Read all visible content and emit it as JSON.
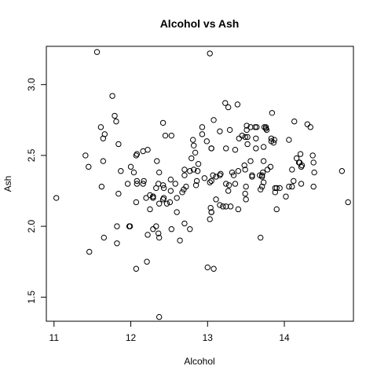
{
  "chart_data": {
    "type": "scatter",
    "title": "Alcohol vs Ash",
    "xlabel": "Alcohol",
    "ylabel": "Ash",
    "xlim": [
      10.9,
      14.9
    ],
    "ylim": [
      1.33,
      3.27
    ],
    "xticks": [
      11,
      12,
      13,
      14
    ],
    "yticks": [
      1.5,
      2.0,
      2.5,
      3.0
    ],
    "xtick_labels": [
      "11",
      "12",
      "13",
      "14"
    ],
    "ytick_labels": [
      "1.5",
      "2.0",
      "2.5",
      "3.0"
    ],
    "grid": false,
    "points": [
      [
        11.03,
        2.2
      ],
      [
        11.41,
        2.5
      ],
      [
        11.45,
        2.42
      ],
      [
        11.46,
        1.82
      ],
      [
        11.56,
        3.23
      ],
      [
        11.61,
        2.7
      ],
      [
        11.62,
        2.28
      ],
      [
        11.64,
        2.46
      ],
      [
        11.64,
        2.62
      ],
      [
        11.65,
        1.92
      ],
      [
        11.66,
        2.65
      ],
      [
        11.76,
        2.92
      ],
      [
        11.79,
        2.78
      ],
      [
        11.81,
        2.74
      ],
      [
        11.82,
        2.0
      ],
      [
        11.82,
        1.88
      ],
      [
        11.84,
        2.58
      ],
      [
        11.84,
        2.23
      ],
      [
        11.87,
        2.39
      ],
      [
        11.96,
        2.3
      ],
      [
        11.98,
        2.0
      ],
      [
        11.99,
        2.0
      ],
      [
        12.0,
        2.42
      ],
      [
        12.04,
        2.38
      ],
      [
        12.07,
        2.5
      ],
      [
        12.08,
        2.51
      ],
      [
        12.08,
        2.32
      ],
      [
        12.08,
        2.3
      ],
      [
        12.07,
        2.17
      ],
      [
        12.07,
        1.7
      ],
      [
        12.16,
        2.53
      ],
      [
        12.16,
        2.3
      ],
      [
        12.17,
        2.32
      ],
      [
        12.2,
        2.2
      ],
      [
        12.21,
        1.75
      ],
      [
        12.22,
        2.54
      ],
      [
        12.22,
        1.94
      ],
      [
        12.25,
        2.12
      ],
      [
        12.25,
        2.22
      ],
      [
        12.29,
        2.2
      ],
      [
        12.29,
        2.21
      ],
      [
        12.29,
        2.21
      ],
      [
        12.29,
        1.98
      ],
      [
        12.33,
        2.0
      ],
      [
        12.33,
        2.27
      ],
      [
        12.34,
        2.46
      ],
      [
        12.36,
        2.3
      ],
      [
        12.36,
        1.95
      ],
      [
        12.37,
        2.38
      ],
      [
        12.37,
        2.16
      ],
      [
        12.37,
        1.92
      ],
      [
        12.37,
        1.36
      ],
      [
        12.42,
        2.73
      ],
      [
        12.42,
        2.19
      ],
      [
        12.42,
        2.29
      ],
      [
        12.43,
        2.2
      ],
      [
        12.43,
        2.27
      ],
      [
        12.45,
        2.64
      ],
      [
        12.47,
        2.16
      ],
      [
        12.51,
        2.17
      ],
      [
        12.52,
        2.25
      ],
      [
        12.52,
        2.33
      ],
      [
        12.53,
        2.64
      ],
      [
        12.53,
        1.98
      ],
      [
        12.58,
        2.3
      ],
      [
        12.6,
        2.2
      ],
      [
        12.6,
        2.1
      ],
      [
        12.64,
        1.9
      ],
      [
        12.67,
        2.24
      ],
      [
        12.69,
        2.26
      ],
      [
        12.7,
        2.02
      ],
      [
        12.7,
        2.36
      ],
      [
        12.7,
        2.4
      ],
      [
        12.72,
        2.28
      ],
      [
        12.77,
        2.39
      ],
      [
        12.77,
        1.98
      ],
      [
        12.79,
        2.48
      ],
      [
        12.81,
        2.61
      ],
      [
        12.82,
        2.57
      ],
      [
        12.82,
        2.4
      ],
      [
        12.84,
        2.52
      ],
      [
        12.85,
        2.29
      ],
      [
        12.86,
        2.32
      ],
      [
        12.87,
        2.39
      ],
      [
        12.88,
        2.44
      ],
      [
        12.93,
        2.7
      ],
      [
        12.93,
        2.65
      ],
      [
        12.96,
        2.34
      ],
      [
        12.99,
        2.6
      ],
      [
        13.0,
        1.71
      ],
      [
        13.03,
        3.22
      ],
      [
        13.03,
        2.31
      ],
      [
        13.03,
        2.05
      ],
      [
        13.04,
        2.13
      ],
      [
        13.05,
        2.1
      ],
      [
        13.05,
        2.32
      ],
      [
        13.05,
        2.55
      ],
      [
        13.05,
        2.55
      ],
      [
        13.05,
        2.1
      ],
      [
        13.07,
        2.36
      ],
      [
        13.08,
        2.75
      ],
      [
        13.08,
        1.7
      ],
      [
        13.11,
        2.35
      ],
      [
        13.11,
        2.19
      ],
      [
        13.16,
        2.36
      ],
      [
        13.16,
        2.67
      ],
      [
        13.16,
        2.15
      ],
      [
        13.17,
        2.37
      ],
      [
        13.2,
        2.14
      ],
      [
        13.23,
        2.87
      ],
      [
        13.24,
        2.14
      ],
      [
        13.24,
        2.3
      ],
      [
        13.24,
        2.55
      ],
      [
        13.27,
        2.25
      ],
      [
        13.27,
        2.84
      ],
      [
        13.28,
        2.29
      ],
      [
        13.29,
        2.68
      ],
      [
        13.3,
        2.14
      ],
      [
        13.32,
        2.38
      ],
      [
        13.34,
        2.36
      ],
      [
        13.36,
        2.54
      ],
      [
        13.36,
        2.3
      ],
      [
        13.39,
        2.86
      ],
      [
        13.4,
        2.12
      ],
      [
        13.4,
        2.39
      ],
      [
        13.41,
        2.62
      ],
      [
        13.45,
        2.64
      ],
      [
        13.48,
        2.43
      ],
      [
        13.49,
        2.63
      ],
      [
        13.49,
        2.4
      ],
      [
        13.49,
        2.23
      ],
      [
        13.5,
        2.28
      ],
      [
        13.5,
        2.19
      ],
      [
        13.51,
        2.68
      ],
      [
        13.51,
        2.71
      ],
      [
        13.52,
        2.58
      ],
      [
        13.52,
        2.63
      ],
      [
        13.56,
        2.46
      ],
      [
        13.56,
        2.7
      ],
      [
        13.58,
        2.35
      ],
      [
        13.58,
        2.36
      ],
      [
        13.62,
        2.7
      ],
      [
        13.63,
        2.55
      ],
      [
        13.63,
        2.62
      ],
      [
        13.64,
        2.7
      ],
      [
        13.68,
        2.36
      ],
      [
        13.69,
        2.26
      ],
      [
        13.71,
        2.36
      ],
      [
        13.71,
        2.28
      ],
      [
        13.71,
        2.35
      ],
      [
        13.72,
        2.38
      ],
      [
        13.73,
        2.31
      ],
      [
        13.73,
        2.46
      ],
      [
        13.73,
        2.56
      ],
      [
        13.74,
        2.7
      ],
      [
        13.76,
        2.7
      ],
      [
        13.76,
        2.69
      ],
      [
        13.77,
        2.68
      ],
      [
        13.78,
        2.4
      ],
      [
        13.82,
        2.42
      ],
      [
        13.83,
        2.62
      ],
      [
        13.83,
        2.6
      ],
      [
        13.84,
        2.8
      ],
      [
        13.86,
        2.59
      ],
      [
        13.87,
        2.61
      ],
      [
        13.88,
        2.27
      ],
      [
        13.88,
        2.24
      ],
      [
        13.9,
        2.12
      ],
      [
        13.9,
        2.27
      ],
      [
        13.94,
        2.27
      ],
      [
        14.02,
        2.21
      ],
      [
        14.06,
        2.61
      ],
      [
        14.06,
        2.28
      ],
      [
        14.1,
        2.28
      ],
      [
        14.1,
        2.4
      ],
      [
        14.12,
        2.32
      ],
      [
        14.13,
        2.74
      ],
      [
        14.16,
        2.48
      ],
      [
        14.19,
        2.45
      ],
      [
        14.2,
        2.45
      ],
      [
        14.21,
        2.51
      ],
      [
        14.22,
        2.42
      ],
      [
        14.22,
        2.3
      ],
      [
        14.23,
        2.43
      ],
      [
        14.3,
        2.72
      ],
      [
        14.34,
        2.7
      ],
      [
        14.37,
        2.5
      ],
      [
        14.38,
        2.45
      ],
      [
        14.38,
        2.28
      ],
      [
        14.39,
        2.38
      ],
      [
        14.75,
        2.39
      ],
      [
        14.83,
        2.17
      ],
      [
        13.69,
        1.92
      ]
    ]
  }
}
